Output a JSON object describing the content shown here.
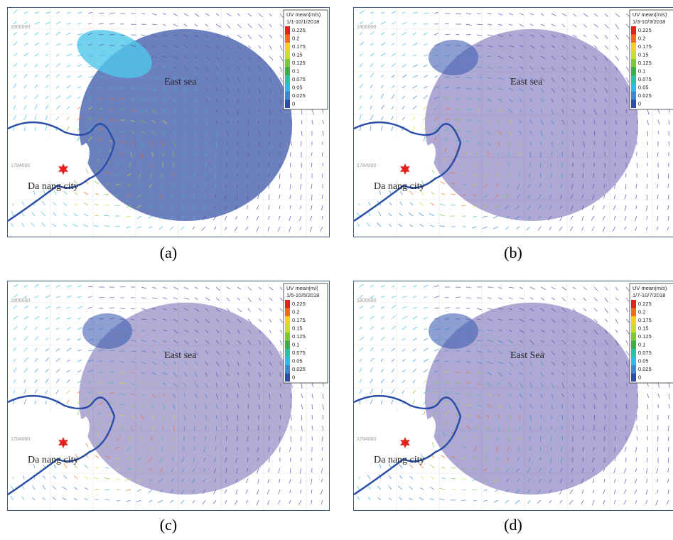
{
  "panels": [
    {
      "caption": "(a)",
      "legend": {
        "title": "UV mean(m/s)",
        "period": "1/1-10/1/2018"
      },
      "sea_label": "East sea",
      "city_label": "Da nang city",
      "y_ticks": [
        1800000,
        1784000
      ]
    },
    {
      "caption": "(b)",
      "legend": {
        "title": "UV mean(m/s)",
        "period": "1/3-10/3/2018"
      },
      "sea_label": "East sea",
      "city_label": "Da nang city",
      "y_ticks": [
        1800000,
        1784000
      ]
    },
    {
      "caption": "(c)",
      "legend": {
        "title": "UV mean(m/(",
        "period": "1/5-10/5/2018"
      },
      "sea_label": "East sea",
      "city_label": "Da nang city",
      "y_ticks": [
        1800000,
        1784000
      ]
    },
    {
      "caption": "(d)",
      "legend": {
        "title": "UV mean(m/s)",
        "period": "1/7-10/7/2018"
      },
      "sea_label": "East Sea",
      "city_label": "Da nang city",
      "y_ticks": [
        1800000,
        1784000
      ]
    }
  ],
  "legend_items": [
    {
      "value": 0.225,
      "color": "#e8201c"
    },
    {
      "value": 0.2,
      "color": "#f46a1f"
    },
    {
      "value": 0.175,
      "color": "#f7d11a"
    },
    {
      "value": 0.15,
      "color": "#c9df2a"
    },
    {
      "value": 0.125,
      "color": "#7cc83a"
    },
    {
      "value": 0.1,
      "color": "#3fae49"
    },
    {
      "value": 0.075,
      "color": "#31c0a6"
    },
    {
      "value": 0.05,
      "color": "#35b9e6"
    },
    {
      "value": 0.025,
      "color": "#3d86d0"
    },
    {
      "value": 0,
      "color": "#2b4fa6"
    }
  ]
}
